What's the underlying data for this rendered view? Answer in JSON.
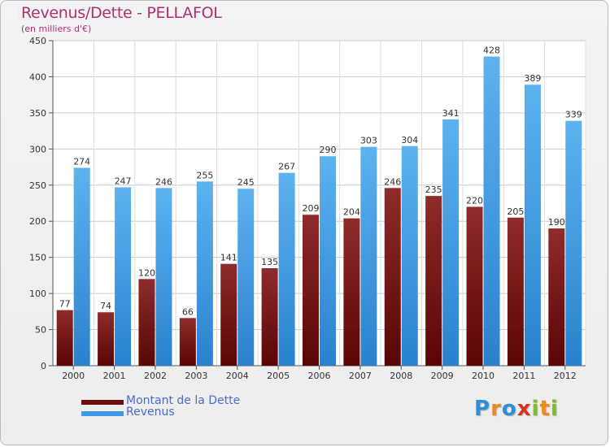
{
  "chart_data": {
    "type": "bar",
    "title": "Revenus/Dette - PELLAFOL",
    "subtitle": "(en milliers d'€)",
    "xlabel": "",
    "ylabel": "",
    "ylim": [
      0,
      450
    ],
    "yticks": [
      0,
      50,
      100,
      150,
      200,
      250,
      300,
      350,
      400,
      450
    ],
    "grid": true,
    "legend_position": "bottom-left",
    "categories": [
      "2000",
      "2001",
      "2002",
      "2003",
      "2004",
      "2005",
      "2006",
      "2007",
      "2008",
      "2009",
      "2010",
      "2011",
      "2012"
    ],
    "series": [
      {
        "name": "Montant de la Dette",
        "color": "#7a1a1a",
        "values": [
          77,
          74,
          120,
          66,
          141,
          135,
          209,
          204,
          246,
          235,
          220,
          205,
          190
        ]
      },
      {
        "name": "Revenus",
        "color": "#4aa3e8",
        "values": [
          274,
          247,
          246,
          255,
          245,
          267,
          290,
          303,
          304,
          341,
          428,
          389,
          339
        ]
      }
    ]
  },
  "brand": {
    "letters": [
      "P",
      "r",
      "o",
      "x",
      "i",
      "t",
      "i"
    ],
    "colors": [
      "#2f8fd6",
      "#f08a1c",
      "#2f8fd6",
      "#d9331f",
      "#7bbf2a",
      "#f08a1c",
      "#7bbf2a"
    ]
  }
}
